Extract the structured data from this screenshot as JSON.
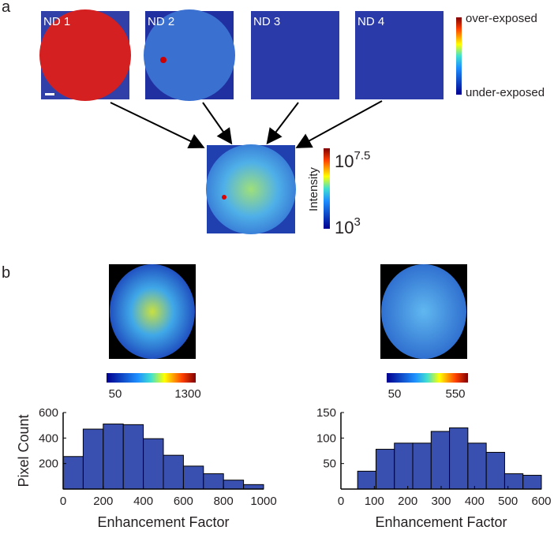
{
  "panel_a": {
    "label": "a",
    "images": [
      "ND 1",
      "ND 2",
      "ND 3",
      "ND 4"
    ],
    "colorbar_top": "over-exposed",
    "colorbar_bottom": "under-exposed",
    "intensity_label": "Intensity",
    "intensity_max": {
      "base": "10",
      "exponent": "7.5"
    },
    "intensity_min": {
      "base": "10",
      "exponent": "3"
    }
  },
  "panel_b": {
    "label": "b",
    "colorbars": [
      {
        "min": 50,
        "max": 1300
      },
      {
        "min": 50,
        "max": 550
      }
    ]
  },
  "chart_data": [
    {
      "type": "histogram",
      "ylabel": "Pixel Count",
      "xlabel": "Enhancement Factor",
      "color": "#3a50b1",
      "bins": [
        0,
        100,
        200,
        300,
        400,
        500,
        600,
        700,
        800,
        900,
        1000
      ],
      "values": [
        255,
        470,
        510,
        505,
        395,
        265,
        180,
        120,
        70,
        35
      ],
      "xlim": [
        0,
        1000
      ],
      "xticks": [
        0,
        200,
        400,
        600,
        800,
        1000
      ],
      "ylim": [
        0,
        600
      ],
      "yticks": [
        200,
        400,
        600
      ]
    },
    {
      "type": "histogram",
      "xlabel": "Enhancement Factor",
      "color": "#3a50b1",
      "bins": [
        50,
        105,
        160,
        215,
        270,
        325,
        380,
        435,
        490,
        545,
        600
      ],
      "values": [
        35,
        78,
        90,
        90,
        113,
        120,
        90,
        72,
        30,
        27
      ],
      "xlim": [
        0,
        600
      ],
      "xticks": [
        0,
        100,
        200,
        300,
        400,
        500,
        600
      ],
      "ylim": [
        0,
        150
      ],
      "yticks": [
        50,
        100,
        150
      ]
    }
  ]
}
